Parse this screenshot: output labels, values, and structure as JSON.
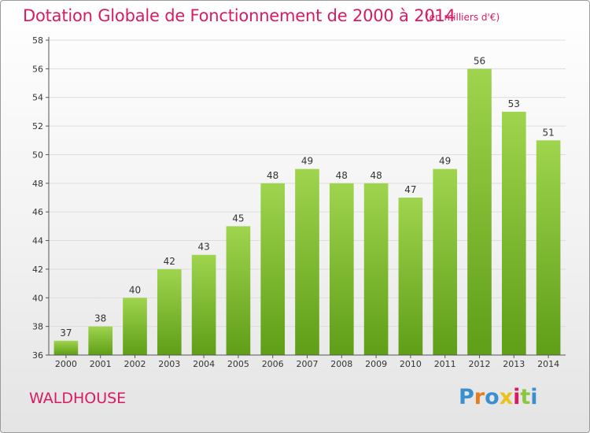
{
  "header": {
    "title": "Dotation Globale de Fonctionnement de 2000 à 2014",
    "unit": "(en milliers d'€)"
  },
  "footer": {
    "commune": "WALDHOUSE",
    "logo_text": "Proxiti",
    "logo_colors": [
      "#3a8fd0",
      "#e87a1f",
      "#3a8fd0",
      "#e8c21f",
      "#d81b62",
      "#8cc63f",
      "#3a8fd0"
    ]
  },
  "colors": {
    "title": "#d81b62",
    "bar_top": "#9fd44e",
    "bar_bottom": "#5f9e17",
    "grid": "#dddddd",
    "axis_text": "#333333"
  },
  "chart_data": {
    "type": "bar",
    "title": "Dotation Globale de Fonctionnement de 2000 à 2014",
    "subtitle": "(en milliers d'€)",
    "categories": [
      "2000",
      "2001",
      "2002",
      "2003",
      "2004",
      "2005",
      "2006",
      "2007",
      "2008",
      "2009",
      "2010",
      "2011",
      "2012",
      "2013",
      "2014"
    ],
    "values": [
      37,
      38,
      40,
      42,
      43,
      45,
      48,
      49,
      48,
      48,
      47,
      49,
      56,
      53,
      51
    ],
    "ylim": [
      36,
      58
    ],
    "yticks": [
      36,
      38,
      40,
      42,
      44,
      46,
      48,
      50,
      52,
      54,
      56,
      58
    ],
    "grid": true,
    "xlabel": "",
    "ylabel": ""
  }
}
